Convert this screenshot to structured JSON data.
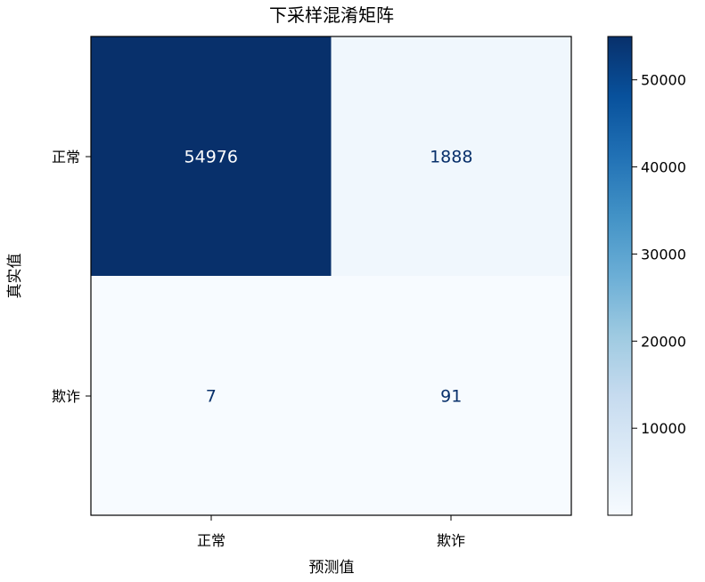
{
  "chart_data": {
    "type": "heatmap",
    "title": "下采样混淆矩阵",
    "xlabel": "预测值",
    "ylabel": "真实值",
    "x_categories": [
      "正常",
      "欺诈"
    ],
    "y_categories": [
      "正常",
      "欺诈"
    ],
    "matrix": [
      [
        54976,
        1888
      ],
      [
        7,
        91
      ]
    ],
    "colormap": "Blues",
    "colorbar": {
      "range": [
        7,
        54976
      ],
      "ticks": [
        10000,
        20000,
        30000,
        40000,
        50000
      ],
      "tick_labels": [
        "10000",
        "20000",
        "30000",
        "40000",
        "50000"
      ]
    },
    "grid": false
  }
}
